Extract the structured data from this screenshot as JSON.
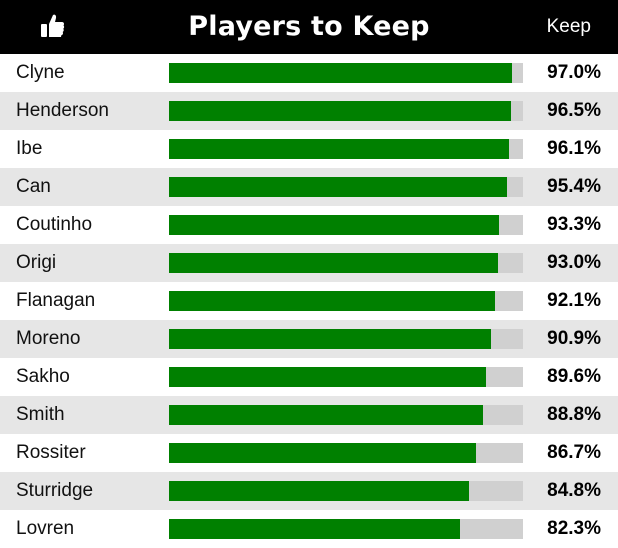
{
  "header": {
    "title": "Players to Keep",
    "keep_label": "Keep",
    "icon": "thumbs-up-icon",
    "background": "#000000",
    "text_color": "#ffffff"
  },
  "colors": {
    "bar_fill": "#008000",
    "bar_track": "#d0d0d0",
    "row_alt": "#e6e6e6",
    "row_plain": "#ffffff"
  },
  "chart_data": {
    "type": "bar",
    "orientation": "horizontal",
    "title": "Players to Keep",
    "value_header": "Keep",
    "categories": [
      "Clyne",
      "Henderson",
      "Ibe",
      "Can",
      "Coutinho",
      "Origi",
      "Flanagan",
      "Moreno",
      "Sakho",
      "Smith",
      "Rossiter",
      "Sturridge",
      "Lovren"
    ],
    "values": [
      97.0,
      96.5,
      96.1,
      95.4,
      93.3,
      93.0,
      92.1,
      90.9,
      89.6,
      88.8,
      86.7,
      84.8,
      82.3
    ],
    "value_labels": [
      "97.0%",
      "96.5%",
      "96.1%",
      "95.4%",
      "93.3%",
      "93.0%",
      "92.1%",
      "90.9%",
      "89.6%",
      "88.8%",
      "86.7%",
      "84.8%",
      "82.3%"
    ],
    "unit": "%",
    "xlim": [
      0,
      100
    ]
  }
}
